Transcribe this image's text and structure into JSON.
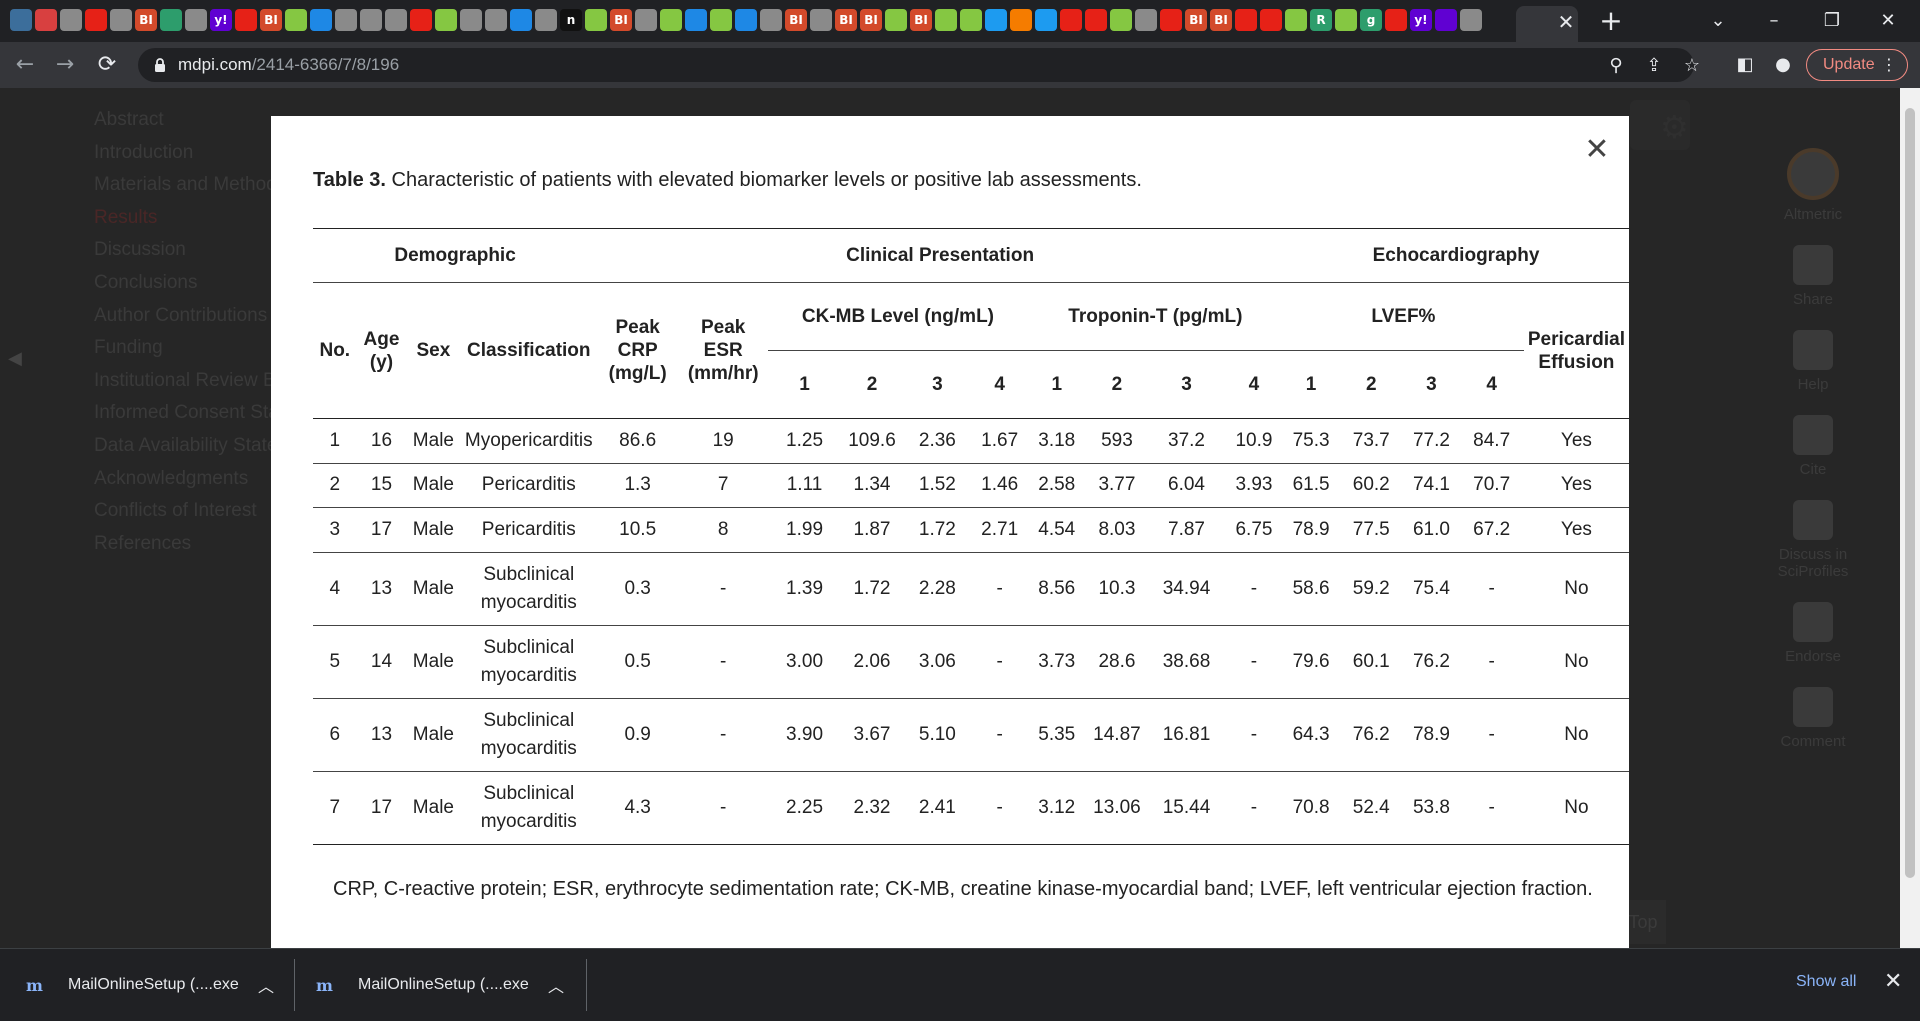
{
  "browser": {
    "favicons": [
      {
        "icon": "globe-icon",
        "color": "#3c6e9b",
        "glyph": ""
      },
      {
        "icon": "chrome-ext-icon",
        "color": "#d84040",
        "glyph": ""
      },
      {
        "icon": "web-icon",
        "color": "#8a8a8a",
        "glyph": ""
      },
      {
        "icon": "youtube-icon",
        "color": "#e62117",
        "glyph": ""
      },
      {
        "icon": "web-icon",
        "color": "#8a8a8a",
        "glyph": ""
      },
      {
        "icon": "bi-icon",
        "color": "#d34a2b",
        "glyph": "BI"
      },
      {
        "icon": "web-icon",
        "color": "#2d9d6c",
        "glyph": ""
      },
      {
        "icon": "web-icon",
        "color": "#8a8a8a",
        "glyph": ""
      },
      {
        "icon": "yahoo-icon",
        "color": "#6001d2",
        "glyph": "y!"
      },
      {
        "icon": "youtube-icon",
        "color": "#e62117",
        "glyph": ""
      },
      {
        "icon": "bi-icon",
        "color": "#d34a2b",
        "glyph": "BI"
      },
      {
        "icon": "rumble-icon",
        "color": "#85c742",
        "glyph": ""
      },
      {
        "icon": "web-icon",
        "color": "#1e88e5",
        "glyph": ""
      },
      {
        "icon": "web-icon",
        "color": "#8a8a8a",
        "glyph": ""
      },
      {
        "icon": "web-icon",
        "color": "#8a8a8a",
        "glyph": ""
      },
      {
        "icon": "web-icon",
        "color": "#8a8a8a",
        "glyph": ""
      },
      {
        "icon": "youtube-icon",
        "color": "#e62117",
        "glyph": ""
      },
      {
        "icon": "rumble-icon",
        "color": "#85c742",
        "glyph": ""
      },
      {
        "icon": "web-icon",
        "color": "#8a8a8a",
        "glyph": ""
      },
      {
        "icon": "web-icon",
        "color": "#8a8a8a",
        "glyph": ""
      },
      {
        "icon": "search-icon",
        "color": "#1e88e5",
        "glyph": ""
      },
      {
        "icon": "web-icon",
        "color": "#8a8a8a",
        "glyph": ""
      },
      {
        "icon": "n-icon",
        "color": "#111111",
        "glyph": "n"
      },
      {
        "icon": "rumble-icon",
        "color": "#85c742",
        "glyph": ""
      },
      {
        "icon": "bi-icon",
        "color": "#d34a2b",
        "glyph": "BI"
      },
      {
        "icon": "web-icon",
        "color": "#8a8a8a",
        "glyph": ""
      },
      {
        "icon": "rumble-icon",
        "color": "#85c742",
        "glyph": ""
      },
      {
        "icon": "web-icon",
        "color": "#1e88e5",
        "glyph": ""
      },
      {
        "icon": "rumble-icon",
        "color": "#85c742",
        "glyph": ""
      },
      {
        "icon": "search-icon",
        "color": "#1e88e5",
        "glyph": ""
      },
      {
        "icon": "web-icon",
        "color": "#8a8a8a",
        "glyph": ""
      },
      {
        "icon": "bi-icon",
        "color": "#d34a2b",
        "glyph": "BI"
      },
      {
        "icon": "web-icon",
        "color": "#8a8a8a",
        "glyph": ""
      },
      {
        "icon": "bi-icon",
        "color": "#d34a2b",
        "glyph": "BI"
      },
      {
        "icon": "bi-icon",
        "color": "#d34a2b",
        "glyph": "BI"
      },
      {
        "icon": "rumble-icon",
        "color": "#85c742",
        "glyph": ""
      },
      {
        "icon": "bi-icon",
        "color": "#d34a2b",
        "glyph": "BI"
      },
      {
        "icon": "rumble-icon",
        "color": "#85c742",
        "glyph": ""
      },
      {
        "icon": "rumble-icon",
        "color": "#85c742",
        "glyph": ""
      },
      {
        "icon": "twitter-icon",
        "color": "#1d9bf0",
        "glyph": ""
      },
      {
        "icon": "web-icon",
        "color": "#f57c00",
        "glyph": ""
      },
      {
        "icon": "twitter-icon",
        "color": "#1d9bf0",
        "glyph": ""
      },
      {
        "icon": "youtube-icon",
        "color": "#e62117",
        "glyph": ""
      },
      {
        "icon": "youtube-icon",
        "color": "#e62117",
        "glyph": ""
      },
      {
        "icon": "rumble-icon",
        "color": "#85c742",
        "glyph": ""
      },
      {
        "icon": "web-icon",
        "color": "#8a8a8a",
        "glyph": ""
      },
      {
        "icon": "youtube-icon",
        "color": "#e62117",
        "glyph": ""
      },
      {
        "icon": "bi-icon",
        "color": "#d34a2b",
        "glyph": "BI"
      },
      {
        "icon": "bi-icon",
        "color": "#d34a2b",
        "glyph": "BI"
      },
      {
        "icon": "youtube-icon",
        "color": "#e62117",
        "glyph": ""
      },
      {
        "icon": "web-icon",
        "color": "#e62117",
        "glyph": ""
      },
      {
        "icon": "rumble-icon",
        "color": "#85c742",
        "glyph": ""
      },
      {
        "icon": "web-icon",
        "color": "#2d9d6c",
        "glyph": "R"
      },
      {
        "icon": "rumble-icon",
        "color": "#85c742",
        "glyph": ""
      },
      {
        "icon": "web-icon",
        "color": "#2d9d6c",
        "glyph": "g"
      },
      {
        "icon": "youtube-icon",
        "color": "#e62117",
        "glyph": ""
      },
      {
        "icon": "yahoo-icon",
        "color": "#6001d2",
        "glyph": "y!"
      },
      {
        "icon": "yahoo-icon",
        "color": "#6001d2",
        "glyph": ""
      },
      {
        "icon": "web-icon",
        "color": "#8a8a8a",
        "glyph": ""
      }
    ],
    "url_domain": "mdpi.com",
    "url_path": "/2414-6366/7/8/196",
    "update_label": "Update",
    "accent": "#f28b82"
  },
  "page": {
    "sidebar_items": [
      "Abstract",
      "Introduction",
      "Materials and Methods",
      "Results",
      "Discussion",
      "Conclusions",
      "Author Contributions",
      "Funding",
      "Institutional Review Board Statement",
      "Informed Consent Statement",
      "Data Availability Statement",
      "Acknowledgments",
      "Conflicts of Interest",
      "References"
    ],
    "rail": [
      "Altmetric",
      "Share",
      "Help",
      "Cite",
      "Discuss in SciProfiles",
      "Endorse",
      "Comment"
    ],
    "top_label": "Top"
  },
  "modal": {
    "caption_label": "Table 3.",
    "caption_text": " Characteristic of patients with elevated biomarker levels or positive lab assessments.",
    "groups": {
      "demographic": "Demographic",
      "clinical": "Clinical Presentation",
      "echo": "Echocardiography"
    },
    "headers": {
      "no": "No.",
      "age": "Age (y)",
      "sex": "Sex",
      "classification": "Classification",
      "crp": "Peak CRP (mg/L)",
      "esr": "Peak ESR (mm/hr)",
      "ckmb": "CK-MB Level (ng/mL)",
      "troponin": "Troponin-T (pg/mL)",
      "lvef": "LVEF%",
      "pericardial": "Pericardial Effusion",
      "sub": [
        "1",
        "2",
        "3",
        "4"
      ]
    },
    "rows": [
      {
        "no": "1",
        "age": "16",
        "sex": "Male",
        "cls": "Myopericarditis",
        "crp": "86.6",
        "esr": "19",
        "ck": [
          "1.25",
          "109.6",
          "2.36",
          "1.67"
        ],
        "tn": [
          "3.18",
          "593",
          "37.2",
          "10.9"
        ],
        "lvef": [
          "75.3",
          "73.7",
          "77.2",
          "84.7"
        ],
        "eff": "Yes"
      },
      {
        "no": "2",
        "age": "15",
        "sex": "Male",
        "cls": "Pericarditis",
        "crp": "1.3",
        "esr": "7",
        "ck": [
          "1.11",
          "1.34",
          "1.52",
          "1.46"
        ],
        "tn": [
          "2.58",
          "3.77",
          "6.04",
          "3.93"
        ],
        "lvef": [
          "61.5",
          "60.2",
          "74.1",
          "70.7"
        ],
        "eff": "Yes"
      },
      {
        "no": "3",
        "age": "17",
        "sex": "Male",
        "cls": "Pericarditis",
        "crp": "10.5",
        "esr": "8",
        "ck": [
          "1.99",
          "1.87",
          "1.72",
          "2.71"
        ],
        "tn": [
          "4.54",
          "8.03",
          "7.87",
          "6.75"
        ],
        "lvef": [
          "78.9",
          "77.5",
          "61.0",
          "67.2"
        ],
        "eff": "Yes"
      },
      {
        "no": "4",
        "age": "13",
        "sex": "Male",
        "cls": "Subclinical myocarditis",
        "crp": "0.3",
        "esr": "-",
        "ck": [
          "1.39",
          "1.72",
          "2.28",
          "-"
        ],
        "tn": [
          "8.56",
          "10.3",
          "34.94",
          "-"
        ],
        "lvef": [
          "58.6",
          "59.2",
          "75.4",
          "-"
        ],
        "eff": "No"
      },
      {
        "no": "5",
        "age": "14",
        "sex": "Male",
        "cls": "Subclinical myocarditis",
        "crp": "0.5",
        "esr": "-",
        "ck": [
          "3.00",
          "2.06",
          "3.06",
          "-"
        ],
        "tn": [
          "3.73",
          "28.6",
          "38.68",
          "-"
        ],
        "lvef": [
          "79.6",
          "60.1",
          "76.2",
          "-"
        ],
        "eff": "No"
      },
      {
        "no": "6",
        "age": "13",
        "sex": "Male",
        "cls": "Subclinical myocarditis",
        "crp": "0.9",
        "esr": "-",
        "ck": [
          "3.90",
          "3.67",
          "5.10",
          "-"
        ],
        "tn": [
          "5.35",
          "14.87",
          "16.81",
          "-"
        ],
        "lvef": [
          "64.3",
          "76.2",
          "78.9",
          "-"
        ],
        "eff": "No"
      },
      {
        "no": "7",
        "age": "17",
        "sex": "Male",
        "cls": "Subclinical myocarditis",
        "crp": "4.3",
        "esr": "-",
        "ck": [
          "2.25",
          "2.32",
          "2.41",
          "-"
        ],
        "tn": [
          "3.12",
          "13.06",
          "15.44",
          "-"
        ],
        "lvef": [
          "70.8",
          "52.4",
          "53.8",
          "-"
        ],
        "eff": "No"
      }
    ],
    "footnote": "CRP, C-reactive protein; ESR, erythrocyte sedimentation rate; CK-MB, creatine kinase-myocardial band; LVEF, left ventricular ejection fraction."
  },
  "downloads": {
    "items": [
      "MailOnlineSetup (....exe",
      "MailOnlineSetup (....exe"
    ],
    "show_all": "Show all"
  }
}
